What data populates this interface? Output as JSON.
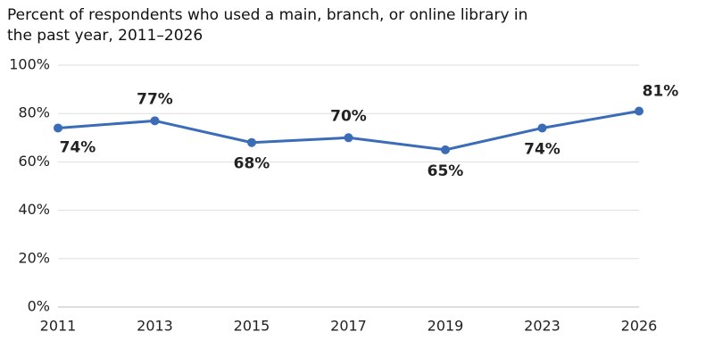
{
  "chart_data": {
    "type": "line",
    "title": "Percent of respondents who used a main, branch, or online library in the past year, 2011–2026",
    "categories": [
      "2011",
      "2013",
      "2015",
      "2017",
      "2019",
      "2023",
      "2026"
    ],
    "series": [
      {
        "color": "#3a6cb8",
        "values": [
          74,
          77,
          68,
          70,
          65,
          74,
          81
        ],
        "value_labels": [
          "74%",
          "77%",
          "68%",
          "70%",
          "65%",
          "74%",
          "81%"
        ]
      }
    ],
    "ylim": [
      0,
      100
    ],
    "yticks": [
      {
        "value": 0,
        "label": "0%"
      },
      {
        "value": 20,
        "label": "20%"
      },
      {
        "value": 40,
        "label": "40%"
      },
      {
        "value": 60,
        "label": "60%"
      },
      {
        "value": 80,
        "label": "80%"
      },
      {
        "value": 100,
        "label": "100%"
      }
    ],
    "grid": true
  }
}
